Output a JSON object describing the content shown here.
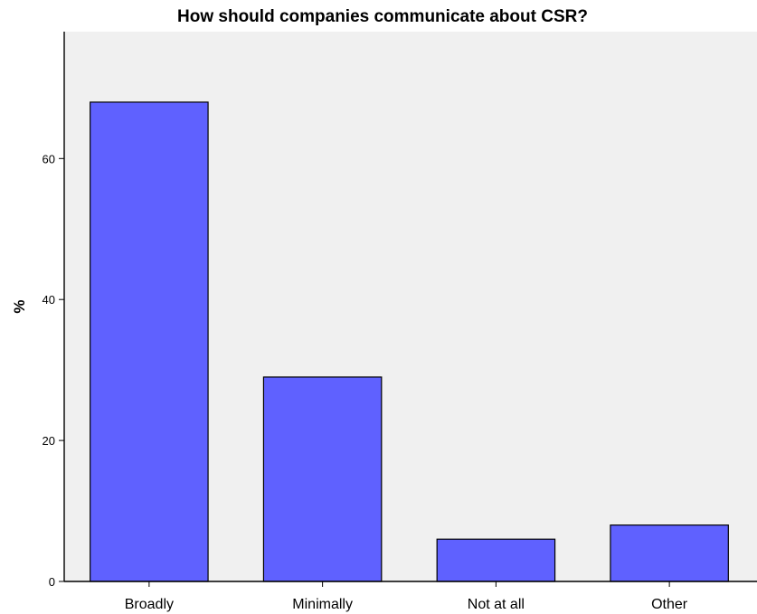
{
  "chart_data": {
    "type": "bar",
    "title": "How should companies communicate about CSR?",
    "xlabel": "",
    "ylabel": "%",
    "categories": [
      "Broadly",
      "Minimally",
      "Not at all",
      "Other"
    ],
    "values": [
      68,
      29,
      6,
      8
    ],
    "ylim": [
      0,
      78
    ],
    "yticks": [
      "0",
      "20",
      "40",
      "60"
    ],
    "grid": false,
    "legend": "none",
    "colors": {
      "bar_fill": "#5f61ff",
      "bar_stroke": "#000000",
      "plot_background": "#f0f0f0",
      "axis": "#000000"
    }
  }
}
